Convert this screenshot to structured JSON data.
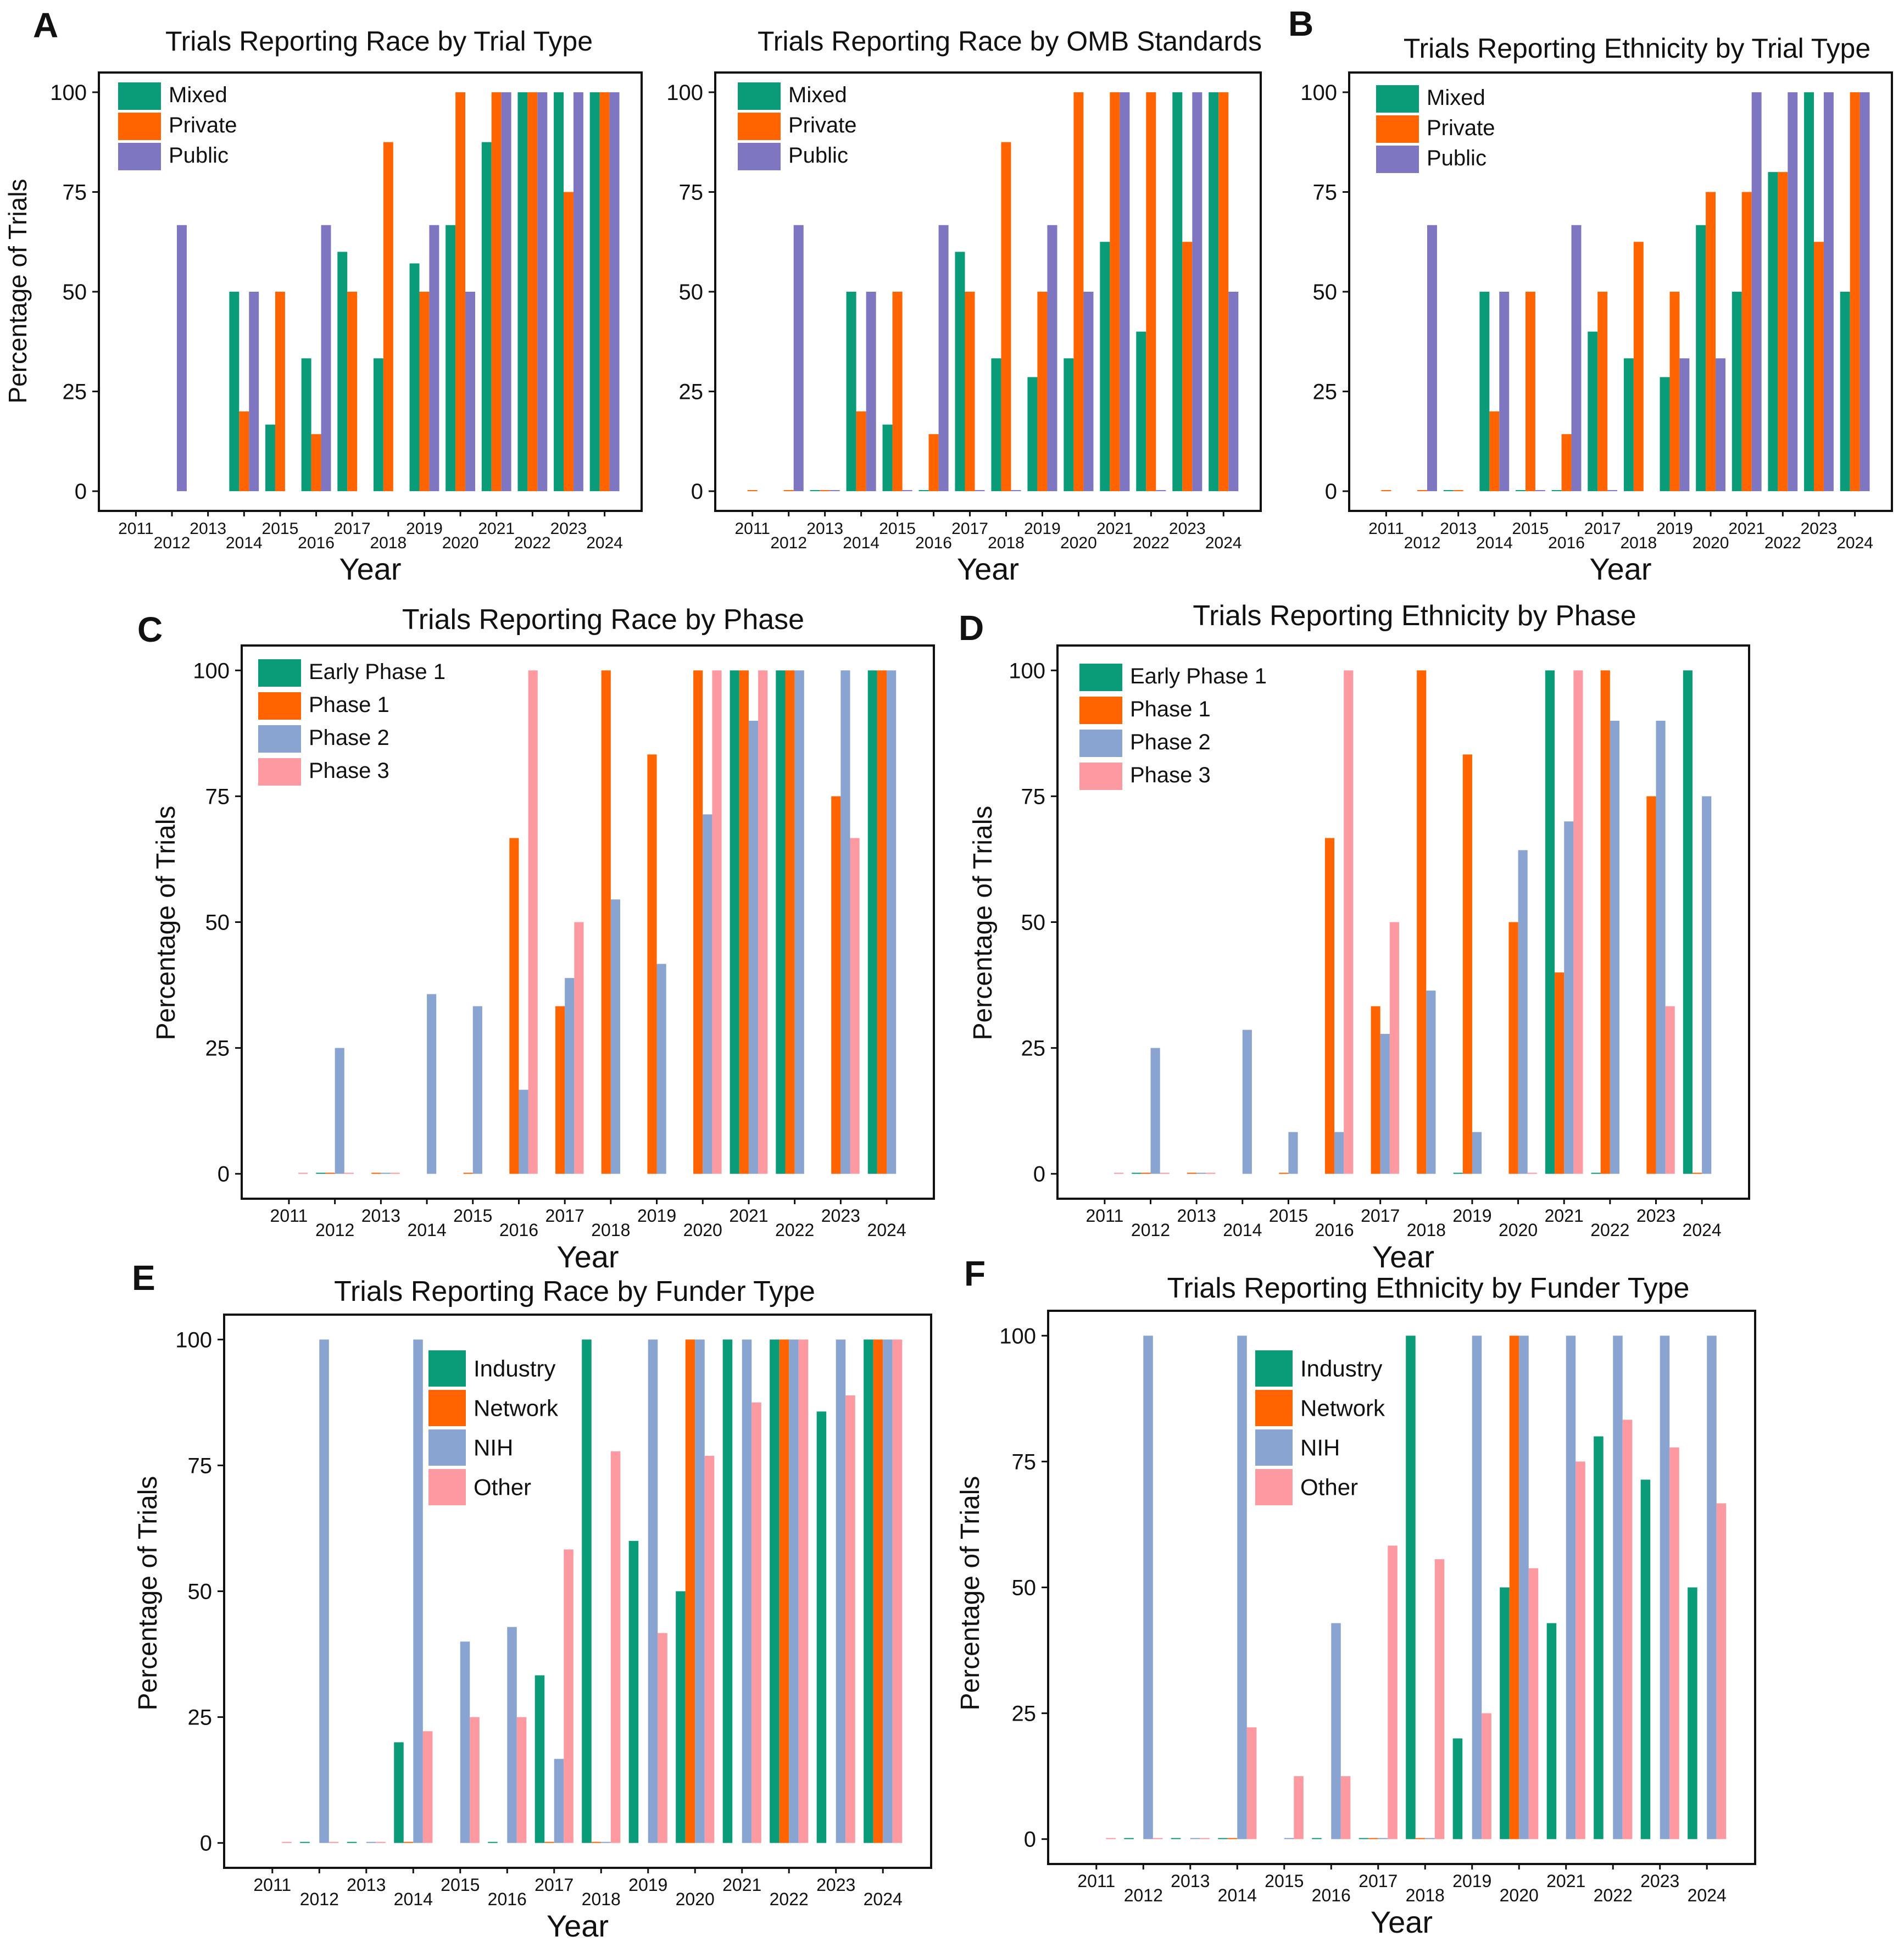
{
  "figure": {
    "years": [
      "2011",
      "2012",
      "2013",
      "2014",
      "2015",
      "2016",
      "2017",
      "2018",
      "2019",
      "2020",
      "2021",
      "2022",
      "2023",
      "2024"
    ],
    "xlabel": "Year",
    "ylabel": "Percentage of Trials",
    "yticks": [
      "0",
      "25",
      "50",
      "75",
      "100"
    ],
    "colors": {
      "Mixed": "#0a9b78",
      "Private": "#ff6400",
      "Public": "#7f76c2",
      "Early Phase 1": "#0a9b78",
      "Phase 1": "#ff6400",
      "Phase 2": "#8aa4d2",
      "Phase 3": "#fd9aa1",
      "Industry": "#0a9b78",
      "Network": "#ff6400",
      "NIH": "#8aa4d2",
      "Other": "#fd9aa1"
    }
  },
  "chart_data": [
    {
      "id": "A1",
      "panel_letter": "A",
      "type": "bar",
      "title": "Trials Reporting Race by Trial Type",
      "xlabel": "Year",
      "ylabel": "Percentage of Trials",
      "ylim": [
        0,
        100
      ],
      "categories": [
        "2011",
        "2012",
        "2013",
        "2014",
        "2015",
        "2016",
        "2017",
        "2018",
        "2019",
        "2020",
        "2021",
        "2022",
        "2023",
        "2024"
      ],
      "legend": "top-left",
      "series": [
        {
          "name": "Mixed",
          "values": [
            null,
            null,
            null,
            50,
            16.7,
            33.3,
            60,
            33.3,
            57.1,
            66.7,
            87.5,
            100,
            100,
            100
          ]
        },
        {
          "name": "Private",
          "values": [
            null,
            null,
            null,
            20,
            50,
            14.3,
            50,
            87.5,
            50,
            100,
            100,
            100,
            75,
            100
          ]
        },
        {
          "name": "Public",
          "values": [
            null,
            66.7,
            null,
            50,
            null,
            66.7,
            null,
            null,
            66.7,
            50,
            100,
            100,
            100,
            100
          ]
        }
      ]
    },
    {
      "id": "A2",
      "panel_letter": "",
      "type": "bar",
      "title": "Trials Reporting Race by OMB Standards",
      "xlabel": "Year",
      "ylabel": "",
      "ylim": [
        0,
        100
      ],
      "categories": [
        "2011",
        "2012",
        "2013",
        "2014",
        "2015",
        "2016",
        "2017",
        "2018",
        "2019",
        "2020",
        "2021",
        "2022",
        "2023",
        "2024"
      ],
      "legend": "top-left",
      "series": [
        {
          "name": "Mixed",
          "values": [
            null,
            null,
            0,
            50,
            16.7,
            0,
            60,
            33.3,
            28.6,
            33.3,
            62.5,
            40,
            100,
            100
          ]
        },
        {
          "name": "Private",
          "values": [
            0,
            0,
            0,
            20,
            50,
            14.3,
            50,
            87.5,
            50,
            100,
            100,
            100,
            62.5,
            100
          ]
        },
        {
          "name": "Public",
          "values": [
            null,
            66.7,
            0,
            50,
            0,
            66.7,
            0,
            0,
            66.7,
            50,
            100,
            0,
            100,
            50
          ]
        }
      ]
    },
    {
      "id": "B",
      "panel_letter": "B",
      "type": "bar",
      "title": "Trials Reporting Ethnicity by Trial Type",
      "xlabel": "Year",
      "ylabel": "",
      "ylim": [
        0,
        100
      ],
      "categories": [
        "2011",
        "2012",
        "2013",
        "2014",
        "2015",
        "2016",
        "2017",
        "2018",
        "2019",
        "2020",
        "2021",
        "2022",
        "2023",
        "2024"
      ],
      "legend": "top-left",
      "series": [
        {
          "name": "Mixed",
          "values": [
            null,
            null,
            0,
            50,
            0,
            0,
            40,
            33.3,
            28.6,
            66.7,
            50,
            80,
            100,
            50
          ]
        },
        {
          "name": "Private",
          "values": [
            0,
            0,
            0,
            20,
            50,
            14.3,
            50,
            62.5,
            50,
            75,
            75,
            80,
            62.5,
            100
          ]
        },
        {
          "name": "Public",
          "values": [
            null,
            66.7,
            null,
            50,
            0,
            66.7,
            0,
            null,
            33.3,
            33.3,
            100,
            100,
            100,
            100
          ]
        }
      ]
    },
    {
      "id": "C",
      "panel_letter": "C",
      "type": "bar",
      "title": "Trials Reporting Race by Phase",
      "xlabel": "Year",
      "ylabel": "Percentage of Trials",
      "ylim": [
        0,
        100
      ],
      "categories": [
        "2011",
        "2012",
        "2013",
        "2014",
        "2015",
        "2016",
        "2017",
        "2018",
        "2019",
        "2020",
        "2021",
        "2022",
        "2023",
        "2024"
      ],
      "legend": "top-left",
      "series": [
        {
          "name": "Early Phase 1",
          "values": [
            null,
            0,
            null,
            null,
            null,
            null,
            null,
            null,
            null,
            null,
            100,
            100,
            null,
            100
          ]
        },
        {
          "name": "Phase 1",
          "values": [
            null,
            0,
            0,
            null,
            0,
            66.7,
            33.3,
            100,
            83.3,
            100,
            100,
            100,
            75,
            100
          ]
        },
        {
          "name": "Phase 2",
          "values": [
            null,
            25,
            0,
            35.7,
            33.3,
            16.7,
            38.9,
            54.5,
            41.7,
            71.4,
            90,
            100,
            100,
            100
          ]
        },
        {
          "name": "Phase 3",
          "values": [
            0,
            0,
            0,
            null,
            null,
            100,
            50,
            null,
            null,
            100,
            100,
            null,
            66.7,
            null
          ]
        }
      ]
    },
    {
      "id": "D",
      "panel_letter": "D",
      "type": "bar",
      "title": "Trials Reporting Ethnicity by Phase",
      "xlabel": "Year",
      "ylabel": "Percentage of Trials",
      "ylim": [
        0,
        100
      ],
      "categories": [
        "2011",
        "2012",
        "2013",
        "2014",
        "2015",
        "2016",
        "2017",
        "2018",
        "2019",
        "2020",
        "2021",
        "2022",
        "2023",
        "2024"
      ],
      "legend": "top-left",
      "series": [
        {
          "name": "Early Phase 1",
          "values": [
            null,
            0,
            null,
            null,
            null,
            null,
            null,
            null,
            0,
            null,
            100,
            0,
            null,
            100
          ]
        },
        {
          "name": "Phase 1",
          "values": [
            null,
            0,
            0,
            null,
            0,
            66.7,
            33.3,
            100,
            83.3,
            50,
            40,
            100,
            75,
            0
          ]
        },
        {
          "name": "Phase 2",
          "values": [
            null,
            25,
            0,
            28.6,
            8.3,
            8.3,
            27.8,
            36.4,
            8.3,
            64.3,
            70,
            90,
            90,
            75
          ]
        },
        {
          "name": "Phase 3",
          "values": [
            0,
            0,
            0,
            null,
            null,
            100,
            50,
            null,
            null,
            0,
            100,
            null,
            33.3,
            null
          ]
        }
      ]
    },
    {
      "id": "E",
      "panel_letter": "E",
      "type": "bar",
      "title": "Trials Reporting Race by Funder Type",
      "xlabel": "Year",
      "ylabel": "Percentage of Trials",
      "ylim": [
        0,
        100
      ],
      "categories": [
        "2011",
        "2012",
        "2013",
        "2014",
        "2015",
        "2016",
        "2017",
        "2018",
        "2019",
        "2020",
        "2021",
        "2022",
        "2023",
        "2024"
      ],
      "legend": "top-center",
      "series": [
        {
          "name": "Industry",
          "values": [
            null,
            0,
            0,
            20,
            null,
            0,
            33.3,
            100,
            60,
            50,
            100,
            100,
            85.7,
            100
          ]
        },
        {
          "name": "Network",
          "values": [
            null,
            null,
            null,
            0,
            null,
            null,
            0,
            0,
            null,
            100,
            null,
            100,
            null,
            100
          ]
        },
        {
          "name": "NIH",
          "values": [
            null,
            100,
            0,
            100,
            40,
            42.9,
            16.7,
            0,
            100,
            100,
            100,
            100,
            100,
            100
          ]
        },
        {
          "name": "Other",
          "values": [
            0,
            0,
            0,
            22.2,
            25,
            25,
            58.3,
            77.8,
            41.7,
            76.9,
            87.5,
            100,
            88.9,
            100
          ]
        }
      ]
    },
    {
      "id": "F",
      "panel_letter": "F",
      "type": "bar",
      "title": "Trials Reporting Ethnicity by Funder Type",
      "xlabel": "Year",
      "ylabel": "Percentage of Trials",
      "ylim": [
        0,
        100
      ],
      "categories": [
        "2011",
        "2012",
        "2013",
        "2014",
        "2015",
        "2016",
        "2017",
        "2018",
        "2019",
        "2020",
        "2021",
        "2022",
        "2023",
        "2024"
      ],
      "legend": "top-center",
      "series": [
        {
          "name": "Industry",
          "values": [
            null,
            0,
            0,
            0,
            null,
            0,
            0,
            100,
            20,
            50,
            42.9,
            80,
            71.4,
            50
          ]
        },
        {
          "name": "Network",
          "values": [
            null,
            null,
            null,
            0,
            null,
            null,
            0,
            0,
            null,
            100,
            null,
            null,
            null,
            null
          ]
        },
        {
          "name": "NIH",
          "values": [
            null,
            100,
            0,
            100,
            0,
            42.9,
            0,
            0,
            100,
            100,
            100,
            100,
            100,
            100
          ]
        },
        {
          "name": "Other",
          "values": [
            0,
            0,
            0,
            22.2,
            12.5,
            12.5,
            58.3,
            55.6,
            25,
            53.8,
            75,
            83.3,
            77.8,
            66.7
          ]
        }
      ]
    }
  ]
}
